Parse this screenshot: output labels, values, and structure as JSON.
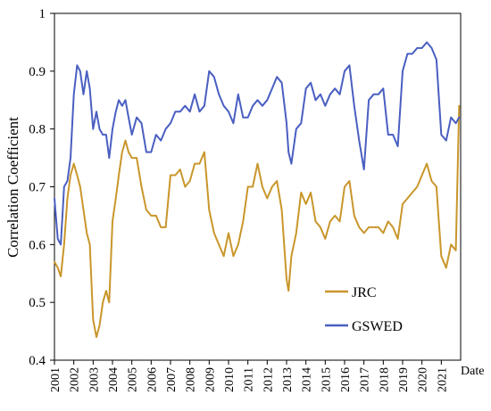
{
  "chart_data": {
    "type": "line",
    "ylabel": "Correlation Coefficient",
    "xlabel": "Date",
    "ylim": [
      0.4,
      1.0
    ],
    "yticks": [
      "0.4",
      "0.5",
      "0.6",
      "0.7",
      "0.8",
      "0.9",
      "1"
    ],
    "xlim": [
      2001,
      2022
    ],
    "xticks": [
      "2001",
      "2002",
      "2003",
      "2004",
      "2005",
      "2006",
      "2007",
      "2008",
      "2009",
      "2010",
      "2011",
      "2012",
      "2013",
      "2014",
      "2015",
      "2016",
      "2017",
      "2018",
      "2019",
      "2020",
      "2021"
    ],
    "grid": false,
    "legend_position": "bottom-right",
    "series": [
      {
        "name": "JRC",
        "color": "#c9962b",
        "x": [
          2001.0,
          2001.17,
          2001.33,
          2001.5,
          2001.67,
          2001.83,
          2002.0,
          2002.17,
          2002.33,
          2002.5,
          2002.67,
          2002.83,
          2003.0,
          2003.17,
          2003.33,
          2003.5,
          2003.67,
          2003.83,
          2004.0,
          2004.17,
          2004.33,
          2004.5,
          2004.67,
          2004.83,
          2005.0,
          2005.25,
          2005.5,
          2005.75,
          2006.0,
          2006.25,
          2006.5,
          2006.75,
          2007.0,
          2007.25,
          2007.5,
          2007.75,
          2008.0,
          2008.25,
          2008.5,
          2008.75,
          2009.0,
          2009.25,
          2009.5,
          2009.75,
          2010.0,
          2010.25,
          2010.5,
          2010.75,
          2011.0,
          2011.25,
          2011.5,
          2011.75,
          2012.0,
          2012.25,
          2012.5,
          2012.75,
          2013.0,
          2013.1,
          2013.25,
          2013.5,
          2013.75,
          2014.0,
          2014.25,
          2014.5,
          2014.75,
          2015.0,
          2015.25,
          2015.5,
          2015.75,
          2016.0,
          2016.25,
          2016.5,
          2016.75,
          2017.0,
          2017.25,
          2017.5,
          2017.75,
          2018.0,
          2018.25,
          2018.5,
          2018.75,
          2019.0,
          2019.25,
          2019.5,
          2019.75,
          2020.0,
          2020.25,
          2020.5,
          2020.75,
          2021.0,
          2021.25,
          2021.5,
          2021.75,
          2021.92
        ],
        "values": [
          0.57,
          0.56,
          0.545,
          0.6,
          0.68,
          0.72,
          0.74,
          0.72,
          0.7,
          0.66,
          0.62,
          0.6,
          0.47,
          0.44,
          0.46,
          0.5,
          0.52,
          0.5,
          0.64,
          0.68,
          0.72,
          0.76,
          0.78,
          0.76,
          0.75,
          0.75,
          0.7,
          0.66,
          0.65,
          0.65,
          0.63,
          0.63,
          0.72,
          0.72,
          0.73,
          0.7,
          0.71,
          0.74,
          0.74,
          0.76,
          0.66,
          0.62,
          0.6,
          0.58,
          0.62,
          0.58,
          0.6,
          0.64,
          0.7,
          0.7,
          0.74,
          0.7,
          0.68,
          0.7,
          0.71,
          0.66,
          0.54,
          0.52,
          0.58,
          0.62,
          0.69,
          0.67,
          0.69,
          0.64,
          0.63,
          0.61,
          0.64,
          0.65,
          0.64,
          0.7,
          0.71,
          0.65,
          0.63,
          0.62,
          0.63,
          0.63,
          0.63,
          0.62,
          0.64,
          0.63,
          0.61,
          0.67,
          0.68,
          0.69,
          0.7,
          0.72,
          0.74,
          0.71,
          0.7,
          0.58,
          0.56,
          0.6,
          0.59,
          0.84
        ]
      },
      {
        "name": "GSWED",
        "color": "#4a5fc1",
        "x": [
          2001.0,
          2001.17,
          2001.33,
          2001.5,
          2001.67,
          2001.83,
          2002.0,
          2002.17,
          2002.33,
          2002.5,
          2002.67,
          2002.83,
          2003.0,
          2003.17,
          2003.33,
          2003.5,
          2003.67,
          2003.83,
          2004.0,
          2004.17,
          2004.33,
          2004.5,
          2004.67,
          2004.83,
          2005.0,
          2005.25,
          2005.5,
          2005.75,
          2006.0,
          2006.25,
          2006.5,
          2006.75,
          2007.0,
          2007.25,
          2007.5,
          2007.75,
          2008.0,
          2008.25,
          2008.5,
          2008.75,
          2009.0,
          2009.25,
          2009.5,
          2009.75,
          2010.0,
          2010.25,
          2010.5,
          2010.75,
          2011.0,
          2011.25,
          2011.5,
          2011.75,
          2012.0,
          2012.25,
          2012.5,
          2012.75,
          2013.0,
          2013.1,
          2013.25,
          2013.5,
          2013.75,
          2014.0,
          2014.25,
          2014.5,
          2014.75,
          2015.0,
          2015.25,
          2015.5,
          2015.75,
          2016.0,
          2016.25,
          2016.5,
          2016.75,
          2017.0,
          2017.25,
          2017.5,
          2017.75,
          2018.0,
          2018.25,
          2018.5,
          2018.75,
          2019.0,
          2019.25,
          2019.5,
          2019.75,
          2020.0,
          2020.25,
          2020.5,
          2020.75,
          2021.0,
          2021.25,
          2021.5,
          2021.75,
          2021.92
        ],
        "values": [
          0.68,
          0.61,
          0.6,
          0.7,
          0.71,
          0.75,
          0.86,
          0.91,
          0.9,
          0.86,
          0.9,
          0.87,
          0.8,
          0.83,
          0.8,
          0.79,
          0.79,
          0.75,
          0.8,
          0.83,
          0.85,
          0.84,
          0.85,
          0.82,
          0.79,
          0.82,
          0.81,
          0.76,
          0.76,
          0.79,
          0.78,
          0.8,
          0.81,
          0.83,
          0.83,
          0.84,
          0.83,
          0.86,
          0.83,
          0.84,
          0.9,
          0.89,
          0.86,
          0.84,
          0.83,
          0.81,
          0.86,
          0.82,
          0.82,
          0.84,
          0.85,
          0.84,
          0.85,
          0.87,
          0.89,
          0.88,
          0.81,
          0.76,
          0.74,
          0.8,
          0.81,
          0.87,
          0.88,
          0.85,
          0.86,
          0.84,
          0.86,
          0.87,
          0.86,
          0.9,
          0.91,
          0.84,
          0.78,
          0.73,
          0.85,
          0.86,
          0.86,
          0.87,
          0.79,
          0.79,
          0.77,
          0.9,
          0.93,
          0.93,
          0.94,
          0.94,
          0.95,
          0.94,
          0.92,
          0.79,
          0.78,
          0.82,
          0.81,
          0.82
        ]
      }
    ]
  }
}
